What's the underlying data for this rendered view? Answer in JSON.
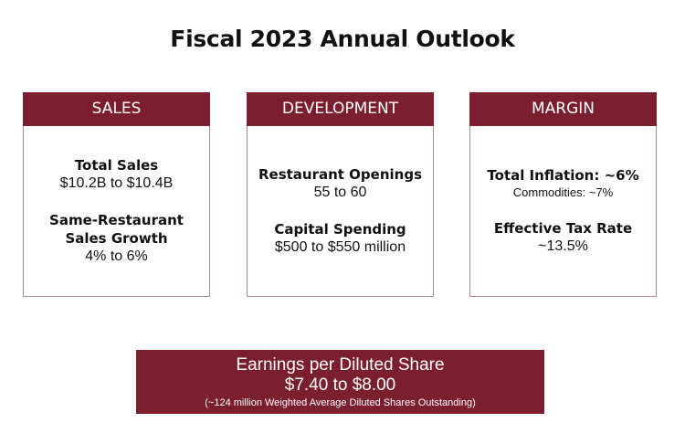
{
  "title": "Fiscal 2023 Annual Outlook",
  "cards": [
    {
      "header": "SALES",
      "items": [
        {
          "label": "Total Sales",
          "value": "$10.2B to $10.4B"
        },
        {
          "label": "Same-Restaurant Sales Growth",
          "value": "4% to 6%"
        }
      ]
    },
    {
      "header": "DEVELOPMENT",
      "items": [
        {
          "label": "Restaurant Openings",
          "value": "55 to 60"
        },
        {
          "label": "Capital Spending",
          "value": "$500 to $550 million"
        }
      ]
    },
    {
      "header": "MARGIN",
      "items": [
        {
          "label": "Total Inflation: ~6%",
          "value": "Commodities: ~7%"
        },
        {
          "label": "Effective Tax Rate",
          "value": "~13.5%"
        }
      ]
    }
  ],
  "eps": {
    "heading": "Earnings per Diluted Share",
    "value": "$7.40 to $8.00",
    "note": "(~124 million Weighted Average Diluted Shares Outstanding)"
  },
  "colors": {
    "accent": "#7b1e2e",
    "border": "#b58a92"
  }
}
